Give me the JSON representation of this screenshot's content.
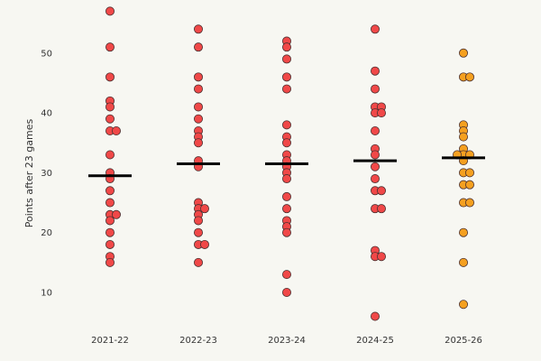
{
  "chart_data": {
    "type": "scatter",
    "subtype": "strip/beeswarm with median lines",
    "title": "",
    "xlabel": "",
    "ylabel": "Points after 23 games",
    "ylim": [
      3,
      59
    ],
    "yticks": [
      10,
      20,
      30,
      40,
      50
    ],
    "grid": false,
    "categories": [
      "2021-22",
      "2022-23",
      "2023-24",
      "2024-25",
      "2025-26"
    ],
    "series": [
      {
        "name": "2021-22",
        "color": "#f04848",
        "median": 29.5,
        "values": [
          57,
          51,
          46,
          42,
          41,
          39,
          37,
          37,
          33,
          30,
          29,
          27,
          25,
          23,
          23,
          22,
          20,
          18,
          16,
          15
        ]
      },
      {
        "name": "2022-23",
        "color": "#f04848",
        "median": 31.5,
        "values": [
          54,
          51,
          46,
          44,
          41,
          39,
          37,
          36,
          35,
          32,
          31,
          25,
          24,
          24,
          23,
          22,
          20,
          18,
          18,
          15
        ]
      },
      {
        "name": "2023-24",
        "color": "#f04848",
        "median": 31.5,
        "values": [
          52,
          51,
          49,
          46,
          44,
          38,
          36,
          35,
          33,
          32,
          31,
          30,
          29,
          26,
          24,
          22,
          21,
          20,
          13,
          10
        ]
      },
      {
        "name": "2024-25",
        "color": "#f04848",
        "median": 32,
        "values": [
          54,
          47,
          44,
          41,
          41,
          40,
          40,
          37,
          34,
          33,
          31,
          29,
          27,
          27,
          24,
          24,
          17,
          16,
          16,
          6
        ]
      },
      {
        "name": "2025-26",
        "color": "#f5a020",
        "median": 32.5,
        "values": [
          50,
          46,
          46,
          38,
          37,
          36,
          34,
          33,
          33,
          33,
          32,
          30,
          30,
          28,
          28,
          25,
          25,
          20,
          15,
          8
        ]
      }
    ]
  }
}
